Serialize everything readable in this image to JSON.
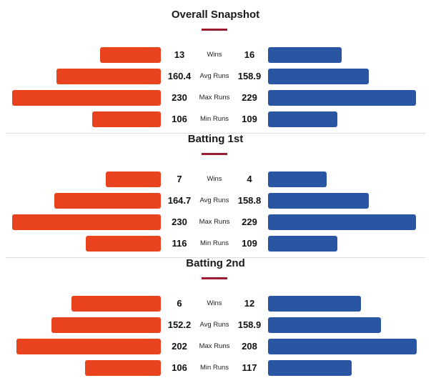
{
  "colors": {
    "team_left": "#e8421f",
    "team_right": "#2a55a3",
    "accent": "#9b1b30"
  },
  "chart_data": {
    "type": "bar",
    "orientation": "horizontal-butterfly",
    "sections": [
      {
        "title": "Overall Snapshot",
        "rows": [
          {
            "label": "Wins",
            "left": "13",
            "right": "16",
            "left_fill": 0.41,
            "right_fill": 0.495
          },
          {
            "label": "Avg Runs",
            "left": "160.4",
            "right": "158.9",
            "left_fill": 0.7,
            "right_fill": 0.68
          },
          {
            "label": "Max Runs",
            "left": "230",
            "right": "229",
            "left_fill": 1.0,
            "right_fill": 0.995
          },
          {
            "label": "Min Runs",
            "left": "106",
            "right": "109",
            "left_fill": 0.46,
            "right_fill": 0.465
          }
        ]
      },
      {
        "title": "Batting 1st",
        "rows": [
          {
            "label": "Wins",
            "left": "7",
            "right": "4",
            "left_fill": 0.37,
            "right_fill": 0.395
          },
          {
            "label": "Avg Runs",
            "left": "164.7",
            "right": "158.8",
            "left_fill": 0.716,
            "right_fill": 0.68
          },
          {
            "label": "Max Runs",
            "left": "230",
            "right": "229",
            "left_fill": 1.0,
            "right_fill": 0.995
          },
          {
            "label": "Min Runs",
            "left": "116",
            "right": "109",
            "left_fill": 0.505,
            "right_fill": 0.465
          }
        ]
      },
      {
        "title": "Batting 2nd",
        "rows": [
          {
            "label": "Wins",
            "left": "6",
            "right": "12",
            "left_fill": 0.6,
            "right_fill": 0.625
          },
          {
            "label": "Avg Runs",
            "left": "152.2",
            "right": "158.9",
            "left_fill": 0.735,
            "right_fill": 0.76
          },
          {
            "label": "Max Runs",
            "left": "202",
            "right": "208",
            "left_fill": 0.97,
            "right_fill": 1.0
          },
          {
            "label": "Min Runs",
            "left": "106",
            "right": "117",
            "left_fill": 0.51,
            "right_fill": 0.5625
          }
        ]
      }
    ]
  }
}
